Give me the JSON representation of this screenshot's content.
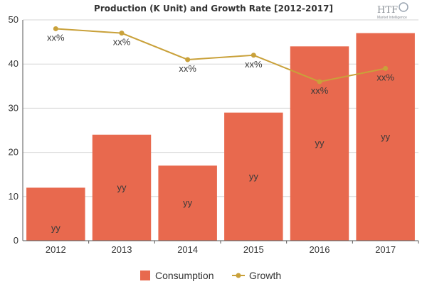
{
  "chart_data": {
    "type": "bar",
    "title": "Production (K Unit) and Growth Rate [2012-2017]",
    "categories": [
      "2012",
      "2013",
      "2014",
      "2015",
      "2016",
      "2017"
    ],
    "series": [
      {
        "name": "Consumption",
        "type": "bar",
        "values": [
          12,
          24,
          17,
          29,
          44,
          47
        ],
        "labels": [
          "yy",
          "yy",
          "yy",
          "yy",
          "yy",
          "yy"
        ],
        "color": "#e8694e"
      },
      {
        "name": "Growth",
        "type": "line",
        "values": [
          48,
          47,
          41,
          42,
          36,
          39
        ],
        "labels": [
          "xx%",
          "xx%",
          "xx%",
          "xx%",
          "xx%",
          "xx%"
        ],
        "color": "#c9a13a"
      }
    ],
    "ylim": [
      0,
      50
    ],
    "yticks": [
      0,
      10,
      20,
      30,
      40,
      50
    ],
    "xlabel": "",
    "ylabel": "",
    "grid": true,
    "legend": "bottom-center"
  },
  "logo": {
    "text": "HTF",
    "subtitle": "Market Intelligence"
  },
  "colors": {
    "grid": "#d6d6d6",
    "axis": "#555555",
    "bar_edge": "#ffffff"
  }
}
